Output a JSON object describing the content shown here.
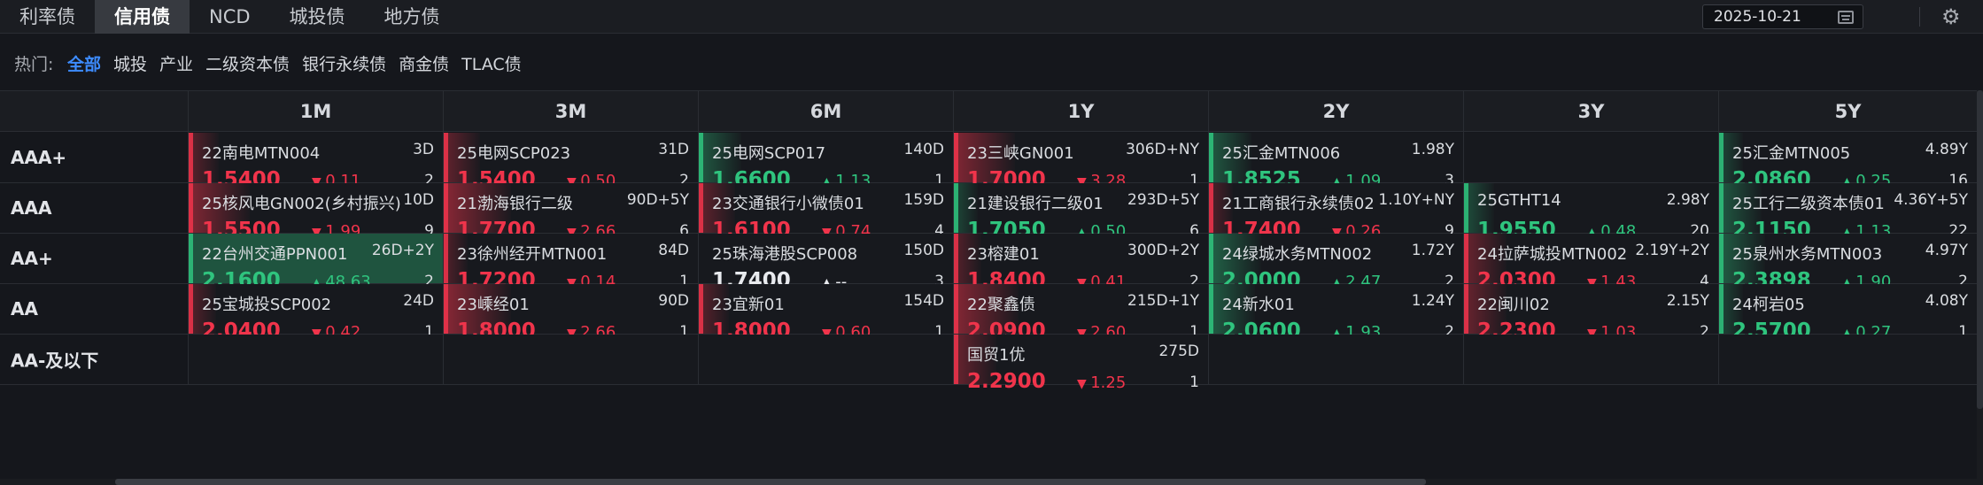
{
  "tabs": [
    "利率债",
    "信用债",
    "NCD",
    "城投债",
    "地方债"
  ],
  "active_tab": 1,
  "date": "2025-10-21",
  "icons": {
    "calendar": "calendar-icon",
    "settings": "gear-icon"
  },
  "filter_label": "热门:",
  "filters": [
    "全部",
    "城投",
    "产业",
    "二级资本债",
    "银行永续债",
    "商金债",
    "TLAC债"
  ],
  "active_filter": 0,
  "colors": {
    "up": "#2fc47e",
    "down": "#f0344b",
    "accent": "#3d8cff"
  },
  "columns": [
    "1M",
    "3M",
    "6M",
    "1Y",
    "2Y",
    "3Y",
    "5Y"
  ],
  "rows": [
    {
      "label": "AAA+",
      "cells": [
        {
          "name": "22南电MTN004",
          "term": "3D",
          "yield": "1.5400",
          "dir": "down",
          "change": "0.11",
          "count": "2",
          "intensity": 0.2
        },
        {
          "name": "25电网SCP023",
          "term": "31D",
          "yield": "1.5400",
          "dir": "down",
          "change": "0.50",
          "count": "2",
          "intensity": 0.3
        },
        {
          "name": "25电网SCP017",
          "term": "140D",
          "yield": "1.6600",
          "dir": "up",
          "change": "1.13",
          "count": "1",
          "intensity": 0.4
        },
        {
          "name": "23三峡GN001",
          "term": "306D+NY",
          "yield": "1.7000",
          "dir": "down",
          "change": "3.28",
          "count": "1",
          "intensity": 0.7
        },
        {
          "name": "25汇金MTN006",
          "term": "1.98Y",
          "yield": "1.8525",
          "dir": "up",
          "change": "1.09",
          "count": "3",
          "intensity": 0.4
        },
        null,
        {
          "name": "25汇金MTN005",
          "term": "4.89Y",
          "yield": "2.0860",
          "dir": "up",
          "change": "0.25",
          "count": "16",
          "intensity": 0.1
        }
      ]
    },
    {
      "label": "AAA",
      "cells": [
        {
          "name": "25核风电GN002(乡村振兴)",
          "term": "10D",
          "yield": "1.5500",
          "dir": "down",
          "change": "1.99",
          "count": "9",
          "intensity": 0.7
        },
        {
          "name": "21渤海银行二级",
          "term": "90D+5Y",
          "yield": "1.7700",
          "dir": "down",
          "change": "2.66",
          "count": "6",
          "intensity": 0.8
        },
        {
          "name": "23交通银行小微债01",
          "term": "159D",
          "yield": "1.6100",
          "dir": "down",
          "change": "0.74",
          "count": "4",
          "intensity": 0.3
        },
        {
          "name": "21建设银行二级01",
          "term": "293D+5Y",
          "yield": "1.7050",
          "dir": "up",
          "change": "0.50",
          "count": "6",
          "intensity": 0.1
        },
        {
          "name": "21工商银行永续债02",
          "term": "1.10Y+NY",
          "yield": "1.7400",
          "dir": "down",
          "change": "0.26",
          "count": "9",
          "intensity": 0.1
        },
        {
          "name": "25GTHT14",
          "term": "2.98Y",
          "yield": "1.9550",
          "dir": "up",
          "change": "0.48",
          "count": "20",
          "intensity": 0.2
        },
        {
          "name": "25工行二级资本债01",
          "term": "4.36Y+5Y",
          "yield": "2.1150",
          "dir": "up",
          "change": "1.13",
          "count": "22",
          "intensity": 0.4
        }
      ]
    },
    {
      "label": "AA+",
      "cells": [
        {
          "name": "22台州交通PPN001",
          "term": "26D+2Y",
          "yield": "2.1600",
          "dir": "up",
          "change": "48.63",
          "count": "2",
          "intensity": 1.0
        },
        {
          "name": "23徐州经开MTN001",
          "term": "84D",
          "yield": "1.7200",
          "dir": "down",
          "change": "0.14",
          "count": "1",
          "intensity": 0.1
        },
        {
          "name": "25珠海港股SCP008",
          "term": "150D",
          "yield": "1.7400",
          "dir": "flat",
          "change": "--",
          "count": "3",
          "intensity": 0
        },
        {
          "name": "23榕建01",
          "term": "300D+2Y",
          "yield": "1.8400",
          "dir": "down",
          "change": "0.41",
          "count": "2",
          "intensity": 0.15
        },
        {
          "name": "24绿城水务MTN002",
          "term": "1.72Y",
          "yield": "2.0000",
          "dir": "up",
          "change": "2.47",
          "count": "2",
          "intensity": 0.55
        },
        {
          "name": "24拉萨城投MTN002",
          "term": "2.19Y+2Y",
          "yield": "2.0300",
          "dir": "down",
          "change": "1.43",
          "count": "4",
          "intensity": 0.4
        },
        {
          "name": "25泉州水务MTN003",
          "term": "4.97Y",
          "yield": "2.3898",
          "dir": "up",
          "change": "1.90",
          "count": "2",
          "intensity": 0.45
        }
      ]
    },
    {
      "label": "AA",
      "cells": [
        {
          "name": "25宝城投SCP002",
          "term": "24D",
          "yield": "2.0400",
          "dir": "down",
          "change": "0.42",
          "count": "1",
          "intensity": 0.15
        },
        {
          "name": "23嵊经01",
          "term": "90D",
          "yield": "1.8000",
          "dir": "down",
          "change": "2.66",
          "count": "1",
          "intensity": 0.8
        },
        {
          "name": "23宜新01",
          "term": "154D",
          "yield": "1.8000",
          "dir": "down",
          "change": "0.60",
          "count": "1",
          "intensity": 0.2
        },
        {
          "name": "22聚鑫债",
          "term": "215D+1Y",
          "yield": "2.0900",
          "dir": "down",
          "change": "2.60",
          "count": "1",
          "intensity": 0.75
        },
        {
          "name": "24新水01",
          "term": "1.24Y",
          "yield": "2.0600",
          "dir": "up",
          "change": "1.93",
          "count": "2",
          "intensity": 0.45
        },
        {
          "name": "22闽川02",
          "term": "2.15Y",
          "yield": "2.2300",
          "dir": "down",
          "change": "1.03",
          "count": "2",
          "intensity": 0.4
        },
        {
          "name": "24柯岩05",
          "term": "4.08Y",
          "yield": "2.5700",
          "dir": "up",
          "change": "0.27",
          "count": "1",
          "intensity": 0.1
        }
      ]
    },
    {
      "label": "AA-及以下",
      "cells": [
        null,
        null,
        null,
        {
          "name": "国贸1优",
          "term": "275D",
          "yield": "2.2900",
          "dir": "down",
          "change": "1.25",
          "count": "1",
          "intensity": 0.4
        },
        null,
        null,
        null
      ]
    }
  ]
}
